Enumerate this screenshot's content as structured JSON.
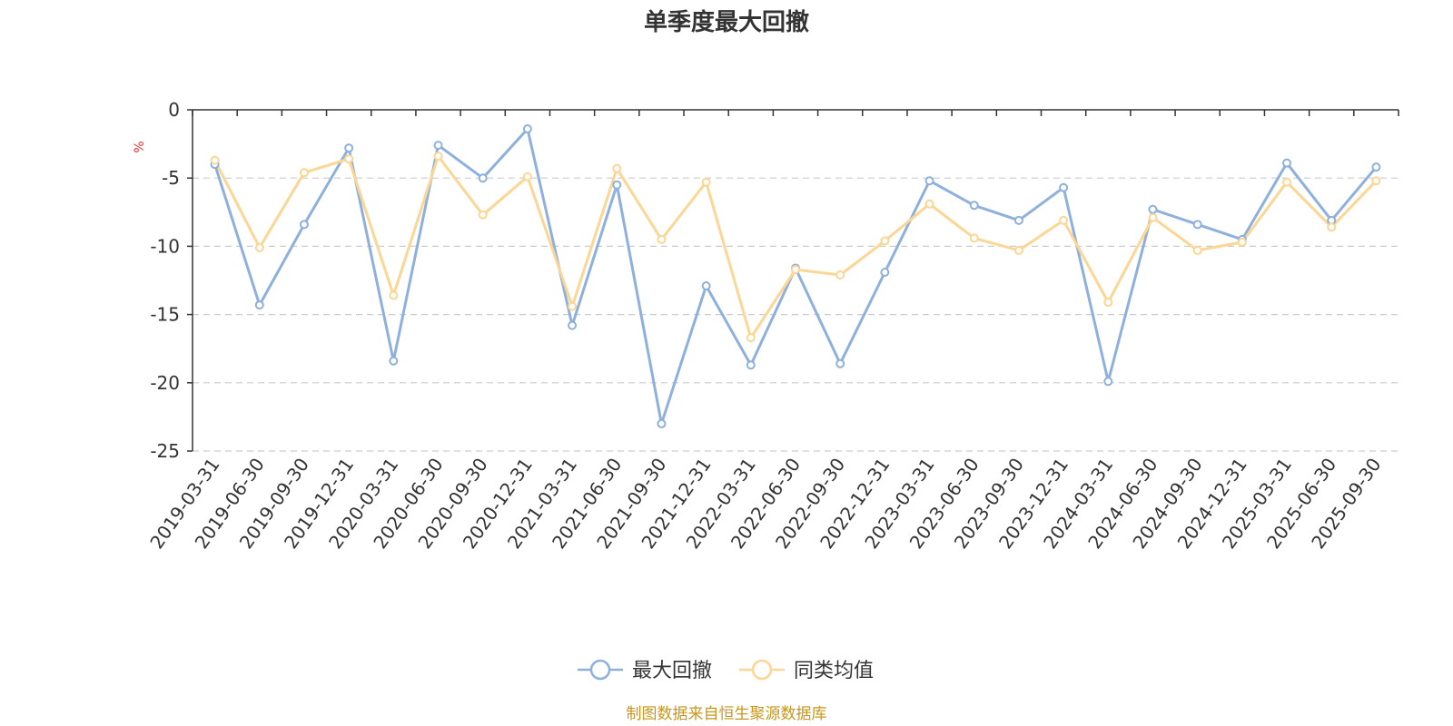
{
  "chart_data": {
    "type": "line",
    "title": "单季度最大回撤",
    "ylabel": "%",
    "xlabel": "",
    "ylim": [
      -25,
      0
    ],
    "yticks": [
      0,
      -5,
      -10,
      -15,
      -20,
      -25
    ],
    "grid": "horizontal dashed",
    "legend_position": "bottom-center",
    "categories": [
      "2019-03-31",
      "2019-06-30",
      "2019-09-30",
      "2019-12-31",
      "2020-03-31",
      "2020-06-30",
      "2020-09-30",
      "2020-12-31",
      "2021-03-31",
      "2021-06-30",
      "2021-09-30",
      "2021-12-31",
      "2022-03-31",
      "2022-06-30",
      "2022-09-30",
      "2022-12-31",
      "2023-03-31",
      "2023-06-30",
      "2023-09-30",
      "2023-12-31",
      "2024-03-31",
      "2024-06-30",
      "2024-09-30",
      "2024-12-31",
      "2025-03-31",
      "2025-06-30",
      "2025-09-30"
    ],
    "series": [
      {
        "name": "最大回撤",
        "color": "#8eb0dc",
        "values": [
          -4.0,
          -14.3,
          -8.4,
          -2.8,
          -18.4,
          -2.6,
          -5.0,
          -1.4,
          -15.8,
          -5.5,
          -23.0,
          -12.9,
          -18.7,
          -11.6,
          -18.6,
          -11.9,
          -5.2,
          -7.0,
          -8.1,
          -5.7,
          -19.9,
          -7.3,
          -8.4,
          -9.5,
          -3.9,
          -8.1,
          -4.2
        ]
      },
      {
        "name": "同类均值",
        "color": "#fbd694",
        "values": [
          -3.7,
          -10.1,
          -4.6,
          -3.6,
          -13.6,
          -3.4,
          -7.7,
          -4.9,
          -14.4,
          -4.3,
          -9.5,
          -5.3,
          -16.7,
          -11.7,
          -12.1,
          -9.6,
          -6.9,
          -9.4,
          -10.3,
          -8.1,
          -14.1,
          -7.9,
          -10.3,
          -9.7,
          -5.3,
          -8.6,
          -5.2
        ]
      }
    ]
  },
  "footer": {
    "source_text": "制图数据来自恒生聚源数据库",
    "color": "#c8961e"
  },
  "unit_color": "#e03030"
}
